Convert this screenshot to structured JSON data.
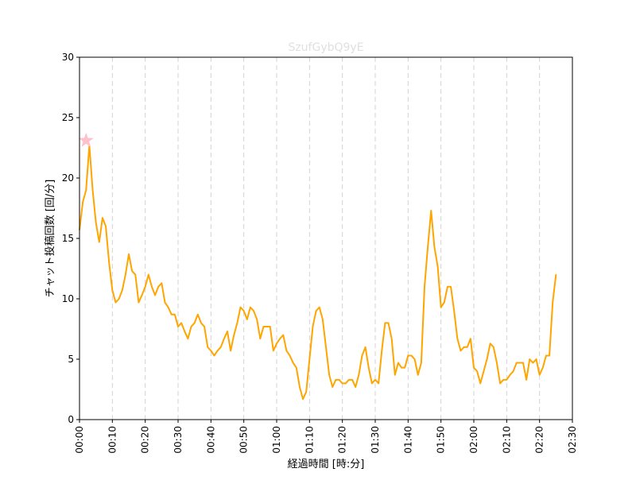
{
  "chart_data": {
    "type": "line",
    "title": "SzufGybQ9yE",
    "xlabel": "経過時間 [時:分]",
    "ylabel": "チャット投稿回数 [回/分]",
    "xlim_minutes": [
      0,
      150
    ],
    "ylim": [
      0,
      30
    ],
    "x_ticks": [
      "00:00",
      "00:10",
      "00:20",
      "00:30",
      "00:40",
      "00:50",
      "01:00",
      "01:10",
      "01:20",
      "01:30",
      "01:40",
      "01:50",
      "02:00",
      "02:10",
      "02:20",
      "02:30"
    ],
    "y_ticks": [
      "0",
      "5",
      "10",
      "15",
      "20",
      "25",
      "30"
    ],
    "grid": "vertical dashed",
    "colors": {
      "line": "#ffa500",
      "peak_marker": "#ffc0cb",
      "title": "#e0e0e0",
      "grid": "#d3d3d3"
    },
    "peak_marker": {
      "x_minutes": 2,
      "y": 23.1,
      "shape": "star"
    },
    "series": [
      {
        "x_minutes_start": 0,
        "x_step_minutes": 1,
        "values": [
          15.7,
          18,
          19,
          22.7,
          19,
          16.3,
          14.7,
          16.7,
          16,
          13,
          10.7,
          9.7,
          10,
          10.7,
          12,
          13.7,
          12.3,
          12,
          9.7,
          10.3,
          11,
          12,
          11,
          10.3,
          11,
          11.3,
          9.7,
          9.3,
          8.7,
          8.7,
          7.7,
          8,
          7.3,
          6.7,
          7.7,
          8,
          8.7,
          8,
          7.7,
          6,
          5.7,
          5.3,
          5.7,
          6,
          6.7,
          7.3,
          5.7,
          7,
          8,
          9.3,
          9,
          8.3,
          9.3,
          9,
          8.3,
          6.7,
          7.7,
          7.7,
          7.7,
          5.7,
          6.3,
          6.7,
          7,
          5.7,
          5.3,
          4.7,
          4.3,
          2.7,
          1.7,
          2.3,
          5,
          7.7,
          9,
          9.3,
          8.3,
          6,
          3.7,
          2.7,
          3.3,
          3.3,
          3,
          3,
          3.3,
          3.3,
          2.7,
          3.7,
          5.3,
          6,
          4.3,
          3,
          3.3,
          3,
          5.7,
          8,
          8,
          6.7,
          3.7,
          4.7,
          4.3,
          4.3,
          5.3,
          5.3,
          5,
          3.7,
          4.7,
          11,
          14.3,
          17.3,
          14.3,
          12.7,
          9.3,
          9.7,
          11,
          11,
          9,
          6.7,
          5.7,
          6,
          6,
          6.7,
          4.3,
          4,
          3,
          4,
          5,
          6.3,
          6,
          4.7,
          3,
          3.3,
          3.3,
          3.7,
          4,
          4.7,
          4.7,
          4.7,
          3.3,
          5,
          4.7,
          5,
          3.7,
          4.3,
          5.3,
          5.3,
          9.7,
          12
        ]
      }
    ]
  }
}
